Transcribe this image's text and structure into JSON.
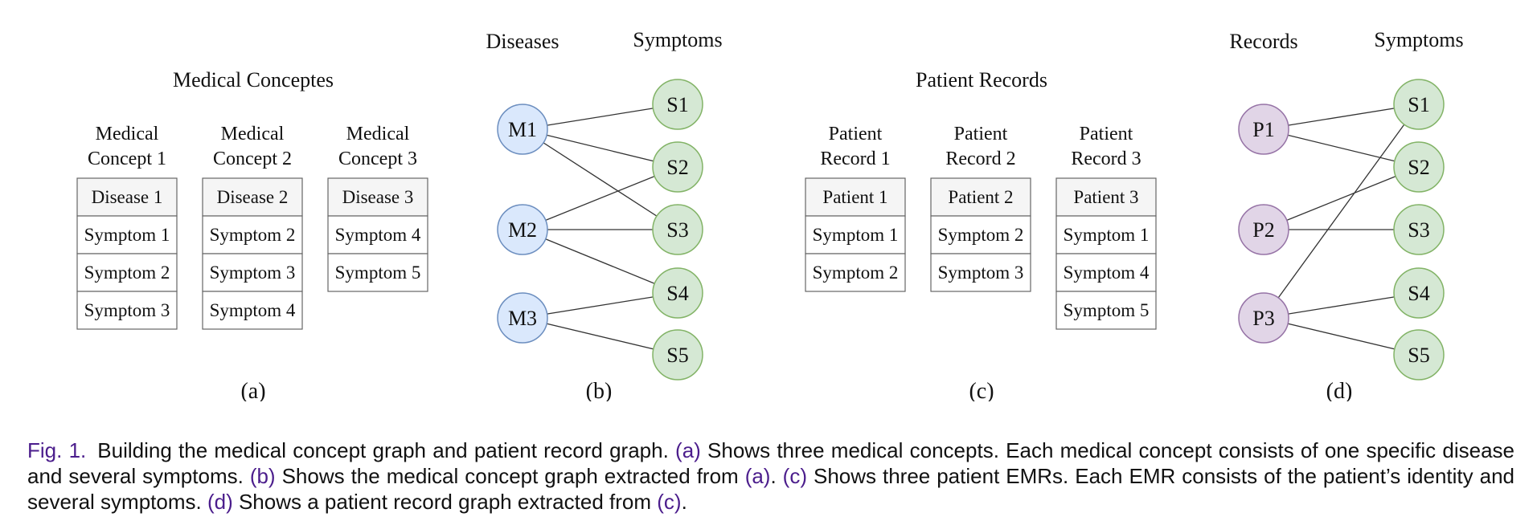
{
  "panel_a": {
    "title": "Medical Conceptes",
    "columns": [
      {
        "header": [
          "Medical",
          "Concept 1"
        ],
        "head_cell": "Disease 1",
        "cells": [
          "Symptom 1",
          "Symptom 2",
          "Symptom 3"
        ]
      },
      {
        "header": [
          "Medical",
          "Concept 2"
        ],
        "head_cell": "Disease 2",
        "cells": [
          "Symptom 2",
          "Symptom 3",
          "Symptom 4"
        ]
      },
      {
        "header": [
          "Medical",
          "Concept 3"
        ],
        "head_cell": "Disease 3",
        "cells": [
          "Symptom 4",
          "Symptom 5"
        ]
      }
    ],
    "label": "(a)"
  },
  "panel_b": {
    "left_title": "Diseases",
    "right_title": "Symptoms",
    "left_nodes": [
      "M1",
      "M2",
      "M3"
    ],
    "right_nodes": [
      "S1",
      "S2",
      "S3",
      "S4",
      "S5"
    ],
    "edges": [
      [
        "M1",
        "S1"
      ],
      [
        "M1",
        "S2"
      ],
      [
        "M1",
        "S3"
      ],
      [
        "M2",
        "S2"
      ],
      [
        "M2",
        "S3"
      ],
      [
        "M2",
        "S4"
      ],
      [
        "M3",
        "S4"
      ],
      [
        "M3",
        "S5"
      ]
    ],
    "left_color": "#dae8fc",
    "left_stroke": "#6c8ebf",
    "right_color": "#d5e8d4",
    "right_stroke": "#82b366",
    "label": "(b)"
  },
  "panel_c": {
    "title": "Patient Records",
    "columns": [
      {
        "header": [
          "Patient",
          "Record 1"
        ],
        "head_cell": "Patient 1",
        "cells": [
          "Symptom 1",
          "Symptom 2"
        ]
      },
      {
        "header": [
          "Patient",
          "Record 2"
        ],
        "head_cell": "Patient 2",
        "cells": [
          "Symptom 2",
          "Symptom 3"
        ]
      },
      {
        "header": [
          "Patient",
          "Record 3"
        ],
        "head_cell": "Patient 3",
        "cells": [
          "Symptom 1",
          "Symptom 4",
          "Symptom 5"
        ]
      }
    ],
    "label": "(c)"
  },
  "panel_d": {
    "left_title": "Records",
    "right_title": "Symptoms",
    "left_nodes": [
      "P1",
      "P2",
      "P3"
    ],
    "right_nodes": [
      "S1",
      "S2",
      "S3",
      "S4",
      "S5"
    ],
    "edges": [
      [
        "P1",
        "S1"
      ],
      [
        "P1",
        "S2"
      ],
      [
        "P2",
        "S2"
      ],
      [
        "P2",
        "S3"
      ],
      [
        "P3",
        "S1"
      ],
      [
        "P3",
        "S4"
      ],
      [
        "P3",
        "S5"
      ]
    ],
    "left_color": "#e1d5e7",
    "left_stroke": "#9673a6",
    "right_color": "#d5e8d4",
    "right_stroke": "#82b366",
    "label": "(d)"
  },
  "caption": {
    "fig_num": "Fig. 1.",
    "parts": [
      {
        "text": "Building the medical concept graph and patient record graph. ",
        "ref": false
      },
      {
        "text": "(a)",
        "ref": true
      },
      {
        "text": " Shows three medical concepts. Each medical concept consists of one specific disease and several symptoms. ",
        "ref": false
      },
      {
        "text": "(b)",
        "ref": true
      },
      {
        "text": " Shows the medical concept graph extracted from ",
        "ref": false
      },
      {
        "text": "(a)",
        "ref": true
      },
      {
        "text": ". ",
        "ref": false
      },
      {
        "text": "(c)",
        "ref": true
      },
      {
        "text": " Shows three patient EMRs. Each EMR consists of the patient’s identity and several symptoms. ",
        "ref": false
      },
      {
        "text": "(d)",
        "ref": true
      },
      {
        "text": " Shows a patient record graph extracted from ",
        "ref": false
      },
      {
        "text": "(c)",
        "ref": true
      },
      {
        "text": ".",
        "ref": false
      }
    ]
  },
  "colors": {
    "table_head_fill": "#f5f5f5",
    "table_stroke": "#666666",
    "edge_stroke": "#333333",
    "caption_ref": "#4b1d8c"
  }
}
